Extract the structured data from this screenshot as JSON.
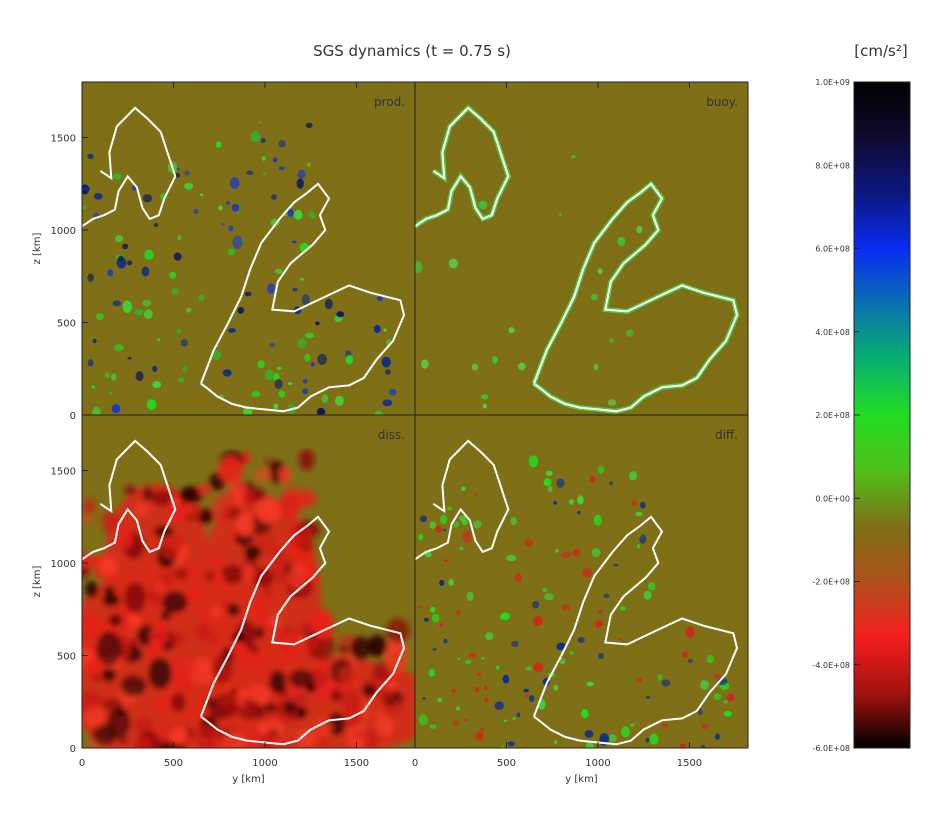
{
  "title": "SGS dynamics (t = 0.75 s)",
  "colors": {
    "panel_background": "#7f7018",
    "contour": "#ffffff",
    "colormap": [
      "#000000",
      "#100a30",
      "#0c1780",
      "#0a2cf0",
      "#0a70b0",
      "#08b070",
      "#22dd22",
      "#4fc018",
      "#7f7018",
      "#b0501a",
      "#f51e1e",
      "#a41210",
      "#000000"
    ]
  },
  "chart_data": {
    "type": "heatmap",
    "title": "SGS dynamics (t = 0.75 s)",
    "panels": [
      {
        "label": "prod.",
        "xlabel": "",
        "ylabel": "z [km]"
      },
      {
        "label": "buoy.",
        "xlabel": "",
        "ylabel": ""
      },
      {
        "label": "diss.",
        "xlabel": "y [km]",
        "ylabel": "z [km]"
      },
      {
        "label": "diff.",
        "xlabel": "y [km]",
        "ylabel": ""
      }
    ],
    "x_ticks": [
      "0",
      "500",
      "1000",
      "1500"
    ],
    "x_tick_values": [
      0,
      500,
      1000,
      1500
    ],
    "y_ticks": [
      "0",
      "500",
      "1000",
      "1500"
    ],
    "y_tick_values": [
      0,
      500,
      1000,
      1500
    ],
    "xlim": [
      0,
      1820
    ],
    "ylim": [
      0,
      1800
    ],
    "colorbar": {
      "unit": "[cm/s²]",
      "min": -600000000.0,
      "max": 1000000000.0,
      "tick_values": [
        1000000000.0,
        800000000.0,
        600000000.0,
        400000000.0,
        200000000.0,
        0,
        -200000000.0,
        -400000000.0,
        -600000000.0
      ],
      "tick_labels": [
        "1.0E+09",
        "8.0E+08",
        "6.0E+08",
        "4.0E+08",
        "2.0E+08",
        "0.0E+00",
        "-2.0E+08",
        "-4.0E+08",
        "-6.0E+08"
      ]
    },
    "contour_paths": [
      [
        [
          100,
          1320
        ],
        [
          160,
          1280
        ],
        [
          150,
          1420
        ],
        [
          190,
          1560
        ],
        [
          290,
          1660
        ],
        [
          360,
          1600
        ],
        [
          430,
          1530
        ],
        [
          470,
          1410
        ],
        [
          510,
          1290
        ],
        [
          450,
          1170
        ],
        [
          420,
          1080
        ],
        [
          370,
          1060
        ],
        [
          330,
          1120
        ],
        [
          300,
          1230
        ],
        [
          250,
          1290
        ],
        [
          200,
          1210
        ],
        [
          180,
          1110
        ],
        [
          120,
          1080
        ],
        [
          60,
          1060
        ],
        [
          0,
          1020
        ]
      ],
      [
        [
          650,
          170
        ],
        [
          720,
          350
        ],
        [
          800,
          500
        ],
        [
          870,
          640
        ],
        [
          920,
          790
        ],
        [
          980,
          930
        ],
        [
          1080,
          1060
        ],
        [
          1160,
          1150
        ],
        [
          1230,
          1200
        ],
        [
          1290,
          1250
        ],
        [
          1350,
          1170
        ],
        [
          1300,
          1080
        ],
        [
          1330,
          1000
        ],
        [
          1260,
          920
        ],
        [
          1140,
          820
        ],
        [
          1070,
          720
        ],
        [
          1040,
          570
        ],
        [
          1160,
          560
        ],
        [
          1330,
          640
        ],
        [
          1460,
          700
        ],
        [
          1580,
          660
        ],
        [
          1740,
          620
        ],
        [
          1760,
          540
        ],
        [
          1700,
          400
        ],
        [
          1610,
          300
        ],
        [
          1540,
          200
        ],
        [
          1460,
          160
        ],
        [
          1350,
          150
        ],
        [
          1250,
          100
        ],
        [
          1180,
          40
        ],
        [
          1100,
          20
        ],
        [
          1000,
          30
        ],
        [
          900,
          40
        ],
        [
          820,
          60
        ],
        [
          740,
          100
        ],
        [
          690,
          140
        ],
        [
          650,
          170
        ]
      ]
    ],
    "legend": []
  }
}
